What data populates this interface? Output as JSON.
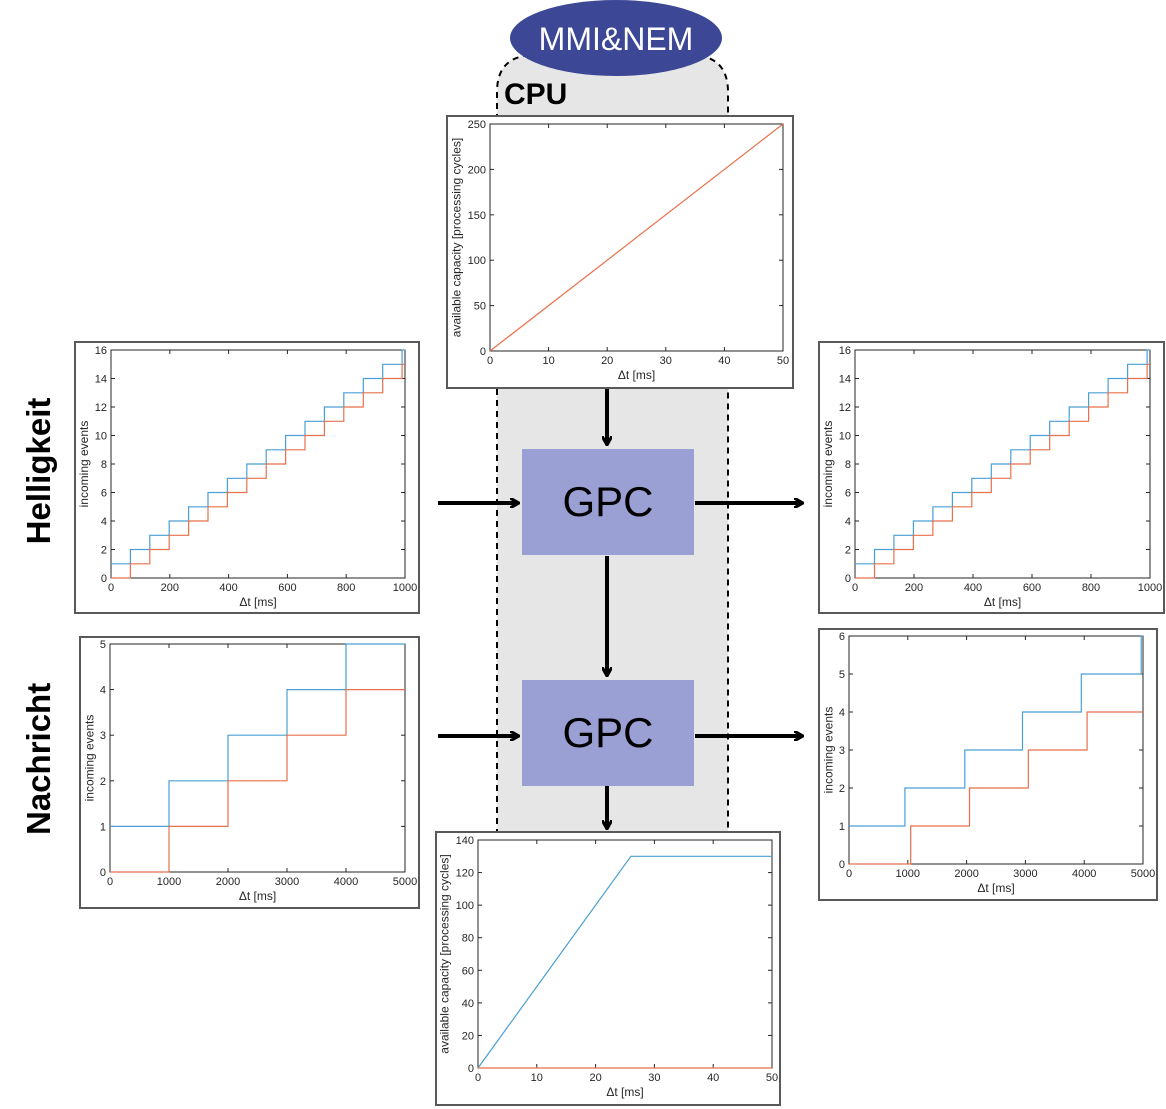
{
  "diagram": {
    "top_ellipse_label": "MMI&NEM",
    "cpu_label": "CPU",
    "gpc_top_label": "GPC",
    "gpc_bottom_label": "GPC",
    "left_row_top_label": "Helligkeit",
    "left_row_bottom_label": "Nachricht",
    "colors": {
      "ellipse": "#3c4796",
      "gpc_fill": "#9a9fd4",
      "cpu_region": "#e6e6e6",
      "series_blue": "#4a9fd6",
      "series_orange": "#e8704a"
    }
  },
  "chart_data": [
    {
      "id": "cpu-capacity",
      "type": "line",
      "xlabel": "Δt [ms]",
      "ylabel": "available capacity [processing cycles]",
      "xlim": [
        0,
        50
      ],
      "ylim": [
        0,
        250
      ],
      "xticks": [
        0,
        10,
        20,
        30,
        40,
        50
      ],
      "yticks": [
        0,
        50,
        100,
        150,
        200,
        250
      ],
      "series": [
        {
          "color": "#e8704a",
          "x": [
            0,
            50
          ],
          "y": [
            0,
            250
          ]
        }
      ]
    },
    {
      "id": "helligkeit-in",
      "type": "line",
      "xlabel": "Δt [ms]",
      "ylabel": "incoming events",
      "xlim": [
        0,
        1000
      ],
      "ylim": [
        0,
        16
      ],
      "xticks": [
        0,
        200,
        400,
        600,
        800,
        1000
      ],
      "yticks": [
        0,
        2,
        4,
        6,
        8,
        10,
        12,
        14,
        16
      ],
      "series": [
        {
          "color": "#4a9fd6",
          "step": true,
          "period": 66,
          "offset": 0,
          "start": 1,
          "final_jump": [
            995,
            16
          ]
        },
        {
          "color": "#e8704a",
          "step": true,
          "period": 66,
          "offset": 66,
          "start": 0,
          "final_jump": null
        }
      ]
    },
    {
      "id": "helligkeit-out",
      "type": "line",
      "xlabel": "Δt [ms]",
      "ylabel": "incoming events",
      "xlim": [
        0,
        1000
      ],
      "ylim": [
        0,
        16
      ],
      "xticks": [
        0,
        200,
        400,
        600,
        800,
        1000
      ],
      "yticks": [
        0,
        2,
        4,
        6,
        8,
        10,
        12,
        14,
        16
      ],
      "series": [
        {
          "color": "#4a9fd6",
          "step": true,
          "period": 66,
          "offset": 0,
          "start": 1,
          "final_jump": [
            995,
            16
          ]
        },
        {
          "color": "#e8704a",
          "step": true,
          "period": 66,
          "offset": 66,
          "start": 0,
          "final_jump": null
        }
      ]
    },
    {
      "id": "nachricht-in",
      "type": "line",
      "xlabel": "Δt [ms]",
      "ylabel": "incoming events",
      "xlim": [
        0,
        5000
      ],
      "ylim": [
        0,
        5
      ],
      "xticks": [
        0,
        1000,
        2000,
        3000,
        4000,
        5000
      ],
      "yticks": [
        0,
        1,
        2,
        3,
        4,
        5
      ],
      "series": [
        {
          "color": "#4a9fd6",
          "points": [
            [
              0,
              1
            ],
            [
              1000,
              1
            ],
            [
              1000,
              2
            ],
            [
              2000,
              2
            ],
            [
              2000,
              3
            ],
            [
              3000,
              3
            ],
            [
              3000,
              4
            ],
            [
              4000,
              4
            ],
            [
              4000,
              5
            ],
            [
              5000,
              5
            ]
          ]
        },
        {
          "color": "#e8704a",
          "points": [
            [
              0,
              0
            ],
            [
              1000,
              0
            ],
            [
              1000,
              1
            ],
            [
              2000,
              1
            ],
            [
              2000,
              2
            ],
            [
              3000,
              2
            ],
            [
              3000,
              3
            ],
            [
              4000,
              3
            ],
            [
              4000,
              4
            ],
            [
              5000,
              4
            ]
          ]
        }
      ]
    },
    {
      "id": "nachricht-out",
      "type": "line",
      "xlabel": "Δt [ms]",
      "ylabel": "incoming events",
      "xlim": [
        0,
        5000
      ],
      "ylim": [
        0,
        6
      ],
      "xticks": [
        0,
        1000,
        2000,
        3000,
        4000,
        5000
      ],
      "yticks": [
        0,
        1,
        2,
        3,
        4,
        5,
        6
      ],
      "series": [
        {
          "color": "#4a9fd6",
          "points": [
            [
              0,
              1
            ],
            [
              950,
              1
            ],
            [
              950,
              2
            ],
            [
              1970,
              2
            ],
            [
              1970,
              3
            ],
            [
              2950,
              3
            ],
            [
              2950,
              4
            ],
            [
              3950,
              4
            ],
            [
              3950,
              5
            ],
            [
              4970,
              5
            ],
            [
              4970,
              6
            ],
            [
              5000,
              6
            ]
          ]
        },
        {
          "color": "#e8704a",
          "points": [
            [
              0,
              0
            ],
            [
              1050,
              0
            ],
            [
              1050,
              1
            ],
            [
              2050,
              1
            ],
            [
              2050,
              2
            ],
            [
              3050,
              2
            ],
            [
              3050,
              3
            ],
            [
              4050,
              3
            ],
            [
              4050,
              4
            ],
            [
              5000,
              4
            ]
          ]
        }
      ]
    },
    {
      "id": "remaining-capacity",
      "type": "line",
      "xlabel": "Δt [ms]",
      "ylabel": "available capacity [processing cycles]",
      "xlim": [
        0,
        50
      ],
      "ylim": [
        0,
        140
      ],
      "xticks": [
        0,
        10,
        20,
        30,
        40,
        50
      ],
      "yticks": [
        0,
        20,
        40,
        60,
        80,
        100,
        120,
        140
      ],
      "series": [
        {
          "color": "#4a9fd6",
          "points": [
            [
              0,
              0
            ],
            [
              26,
              130
            ],
            [
              50,
              130
            ]
          ]
        },
        {
          "color": "#e8704a",
          "points": [
            [
              0,
              0
            ],
            [
              50,
              0
            ]
          ]
        }
      ]
    }
  ]
}
